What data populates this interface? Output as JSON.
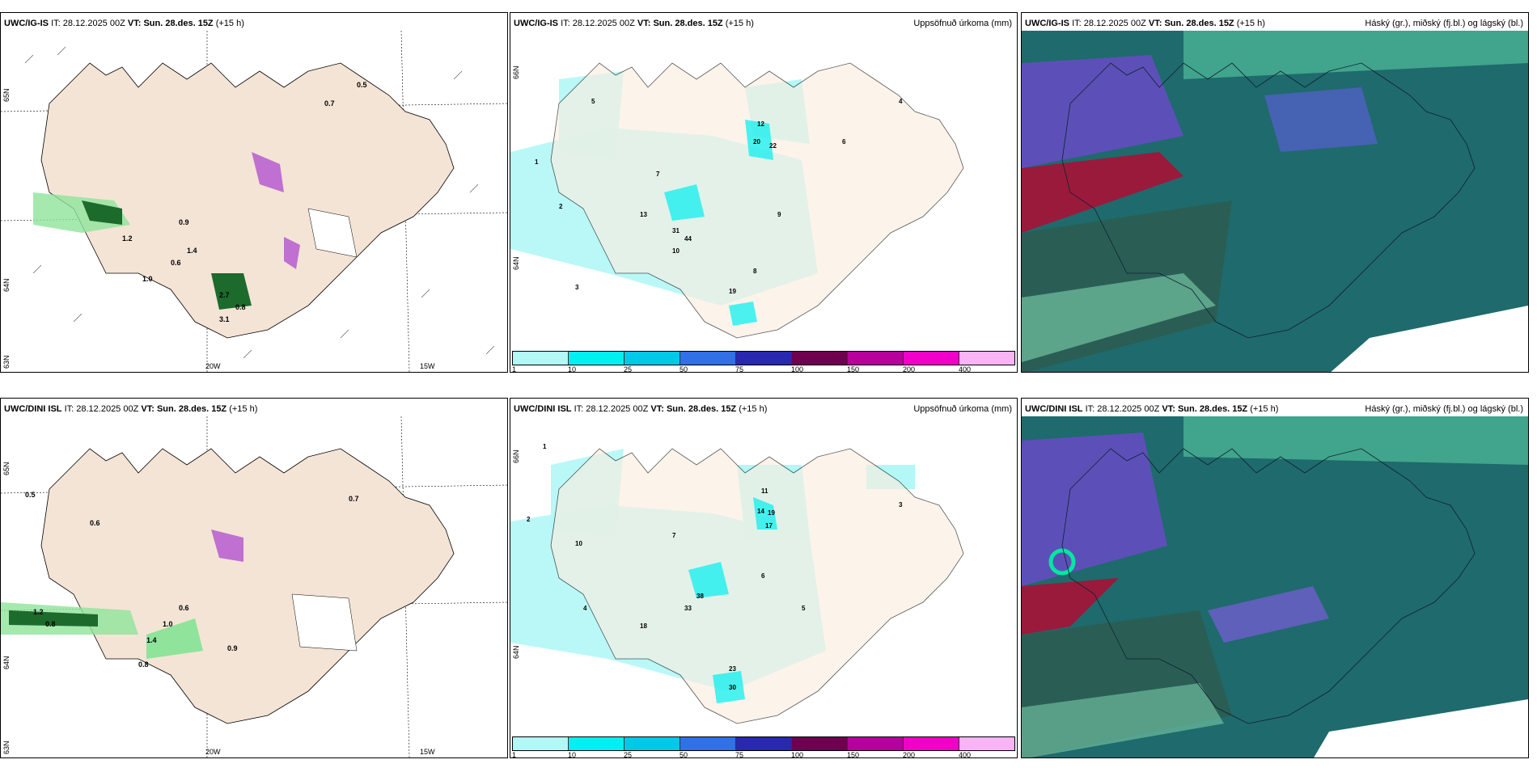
{
  "rows": [
    {
      "model": "UWC/IG-IS",
      "it_label": "IT:",
      "it_value": "28.12.2025 00Z",
      "vt_label": "VT:",
      "vt_value": "Sun. 28.des. 15Z",
      "lead": "(+15 h)"
    },
    {
      "model": "UWC/DINI ISL",
      "it_label": "IT:",
      "it_value": "28.12.2025 00Z",
      "vt_label": "VT:",
      "vt_value": "Sun. 28.des. 15Z",
      "lead": "(+15 h)"
    }
  ],
  "panel_titles": {
    "precip": "Uppsöfnuð úrkoma (mm)",
    "clouds": "Háský (gr.), miðský (fj.bl.) og lágský (bl.)"
  },
  "axis_labels": {
    "lon": [
      "20W",
      "15W"
    ],
    "lat": [
      "65N",
      "64N",
      "63N"
    ],
    "lat_small": [
      "66N",
      "64N"
    ]
  },
  "colorbar": {
    "colors": [
      "#b3f7f7",
      "#00f0f0",
      "#00c8e8",
      "#3070e8",
      "#2828b0",
      "#6e0050",
      "#b8009c",
      "#f000c8",
      "#f8b4f4"
    ],
    "labels": [
      "1",
      "10",
      "25",
      "50",
      "75",
      "100",
      "150",
      "200",
      "400"
    ]
  },
  "precip_labels_top": [
    "1",
    "2",
    "5",
    "7",
    "12",
    "20",
    "22",
    "31",
    "44",
    "19",
    "13",
    "6",
    "4",
    "3",
    "9",
    "10",
    "8"
  ],
  "precip_labels_bottom": [
    "1",
    "2",
    "4",
    "11",
    "14",
    "19",
    "17",
    "33",
    "38",
    "23",
    "30",
    "18",
    "6",
    "3",
    "5",
    "10",
    "7"
  ],
  "wind_labels_top": [
    "0.5",
    "0.7",
    "0.9",
    "0.6",
    "1.0",
    "1.2",
    "2.7",
    "3.1",
    "1.4",
    "0.8"
  ],
  "wind_labels_bottom": [
    "0.5",
    "0.8",
    "1.2",
    "0.6",
    "0.7",
    "0.9",
    "1.0",
    "1.4",
    "0.8",
    "0.6"
  ]
}
